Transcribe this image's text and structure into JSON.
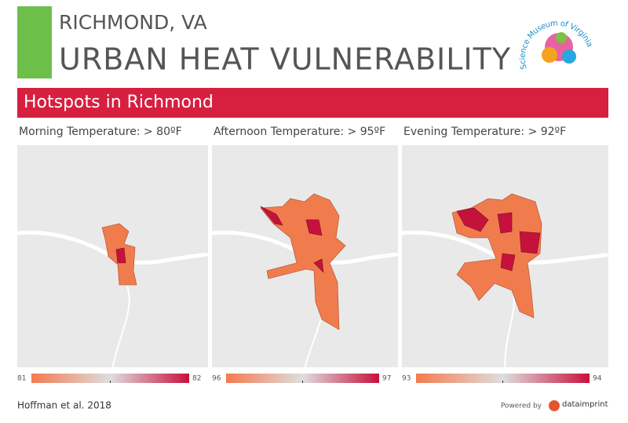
{
  "header": {
    "subtitle": "RICHMOND, VA",
    "title": "URBAN HEAT VULNERABILITY",
    "logo_text": "Science Museum of Virginia"
  },
  "banner": "Hotspots in Richmond",
  "panels": [
    {
      "title": "Morning Temperature: > 80ºF",
      "legend_min": 81,
      "legend_max": 82
    },
    {
      "title": "Afternoon Temperature: > 95ºF",
      "legend_min": 96,
      "legend_max": 97
    },
    {
      "title": "Evening Temperature: > 92ºF",
      "legend_min": 93,
      "legend_max": 94
    }
  ],
  "footer": {
    "citation": "Hoffman et al. 2018",
    "powered_by": "Powered by",
    "brand": "dataimprint"
  }
}
